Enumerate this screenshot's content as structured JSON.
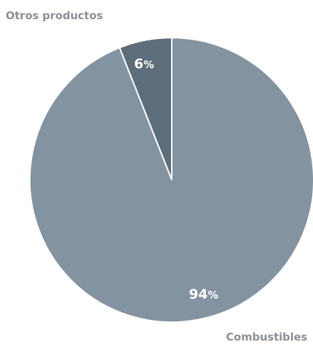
{
  "chart_data": {
    "type": "pie",
    "slices": [
      {
        "label": "Otros productos",
        "value": 6,
        "value_label": "6",
        "unit": "%",
        "color": "#5d6d79"
      },
      {
        "label": "Combustibles",
        "value": 94,
        "value_label": "94",
        "unit": "%",
        "color": "#8493a0"
      }
    ],
    "title": "",
    "legend": "none"
  }
}
